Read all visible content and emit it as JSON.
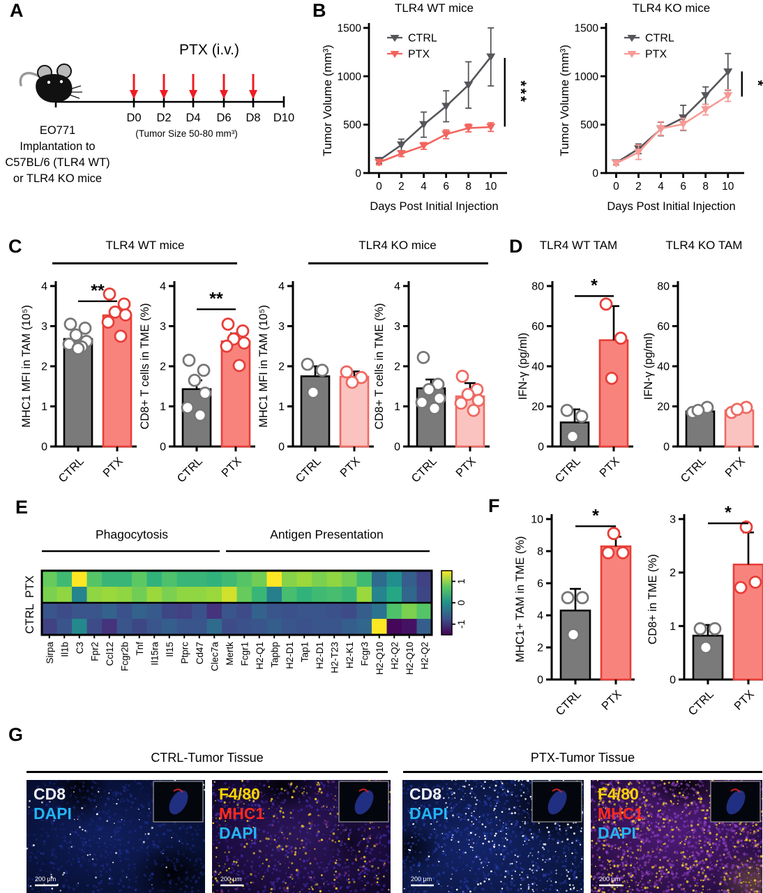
{
  "panel_labels": {
    "a": "A",
    "b": "B",
    "c": "C",
    "d": "D",
    "e": "E",
    "f": "F",
    "g": "G"
  },
  "panel_a": {
    "treatment_label": "PTX (i.v.)",
    "timeline_start": "EO771",
    "timeline_ticks": [
      "D0",
      "D2",
      "D4",
      "D6",
      "D8",
      "D10"
    ],
    "d0_note": "(Tumor Size 50-80 mm³)",
    "implant_lines": [
      "EO771",
      "Implantation to",
      "C57BL/6 (TLR4 WT)",
      "or TLR4 KO mice"
    ],
    "arrow_color": "#ed1c24",
    "n_arrows": 5
  },
  "panel_c": {
    "group_titles": [
      "TLR4 WT mice",
      "TLR4 KO mice"
    ]
  },
  "panel_g": {
    "groups": [
      {
        "title": "CTRL-Tumor Tissue",
        "images": [
          {
            "markers": [
              {
                "text": "CD8",
                "color": "#f5f5f5"
              },
              {
                "text": "DAPI",
                "color": "#23b5f5"
              }
            ],
            "scale_label": "200 μm"
          },
          {
            "markers": [
              {
                "text": "F4/80",
                "color": "#ffd400"
              },
              {
                "text": "MHC1",
                "color": "#ff2a1f"
              },
              {
                "text": "DAPI",
                "color": "#23b5f5"
              }
            ],
            "scale_label": "200 μm"
          }
        ]
      },
      {
        "title": "PTX-Tumor Tissue",
        "images": [
          {
            "markers": [
              {
                "text": "CD8",
                "color": "#f5f5f5"
              },
              {
                "text": "DAPI",
                "color": "#23b5f5"
              }
            ],
            "scale_label": "200 μm"
          },
          {
            "markers": [
              {
                "text": "F4/80",
                "color": "#ffd400"
              },
              {
                "text": "MHC1",
                "color": "#ff2a1f"
              },
              {
                "text": "DAPI",
                "color": "#23b5f5"
              }
            ],
            "scale_label": "200 μm"
          }
        ]
      }
    ]
  },
  "chart_data": [
    {
      "id": "b_wt",
      "type": "line",
      "title": "TLR4 WT mice",
      "xlabel": "Days Post Initial Injection",
      "ylabel": "Tumor Volume (mm³)",
      "x": [
        0,
        2,
        4,
        6,
        8,
        10
      ],
      "ylim": [
        0,
        1500
      ],
      "yticks": [
        0,
        500,
        1000,
        1500
      ],
      "series": [
        {
          "name": "CTRL",
          "color": "#55565a",
          "values": [
            130,
            290,
            500,
            690,
            910,
            1200
          ],
          "err": [
            30,
            60,
            130,
            160,
            240,
            300
          ]
        },
        {
          "name": "PTX",
          "color": "#f2655e",
          "values": [
            110,
            200,
            280,
            400,
            465,
            475
          ],
          "err": [
            25,
            30,
            35,
            45,
            40,
            45
          ]
        }
      ],
      "sig": {
        "label": "***",
        "from": 480,
        "to": 1190
      },
      "legend_position": "top-left",
      "grid": false
    },
    {
      "id": "b_ko",
      "type": "line",
      "title": "TLR4 KO mice",
      "xlabel": "Days Post Initial Injection",
      "ylabel": "Tumor Volume (mm³)",
      "x": [
        0,
        2,
        4,
        6,
        8,
        10
      ],
      "ylim": [
        0,
        1500
      ],
      "yticks": [
        0,
        500,
        1000,
        1500
      ],
      "series": [
        {
          "name": "CTRL",
          "color": "#55565a",
          "values": [
            105,
            250,
            455,
            570,
            800,
            1045
          ],
          "err": [
            20,
            50,
            70,
            130,
            90,
            190
          ]
        },
        {
          "name": "PTX",
          "color": "#f79a95",
          "values": [
            100,
            215,
            460,
            505,
            655,
            800
          ],
          "err": [
            20,
            75,
            70,
            60,
            55,
            60
          ]
        }
      ],
      "sig": {
        "label": "*",
        "from": 790,
        "to": 1050
      },
      "legend_position": "top-left",
      "grid": false
    },
    {
      "id": "c_wt_mhc1",
      "type": "bar",
      "ylabel": "MHC1 MFI in TAM (10⁵)",
      "ylim": [
        0,
        4
      ],
      "yticks": [
        0,
        1,
        2,
        3,
        4
      ],
      "categories": [
        "CTRL",
        "PTX"
      ],
      "bars": [
        {
          "name": "CTRL",
          "value": 2.68,
          "err": 0.14,
          "fill": "#7a7a7a",
          "edge": "#000000",
          "dot_edge": "#777777",
          "dots": [
            3.05,
            2.95,
            2.78,
            2.62,
            2.55,
            2.48,
            2.44
          ]
        },
        {
          "name": "PTX",
          "value": 3.27,
          "err": 0.16,
          "fill": "#f8837d",
          "edge": "#e83e38",
          "dot_edge": "#e83e38",
          "dots": [
            3.8,
            3.55,
            3.35,
            3.28,
            3.1,
            2.75
          ]
        }
      ],
      "sig": {
        "label": "**",
        "y": 3.62
      }
    },
    {
      "id": "c_wt_cd8",
      "type": "bar",
      "ylabel": "CD8+ T cells in TME (%)",
      "ylim": [
        0,
        4
      ],
      "yticks": [
        0,
        1,
        2,
        3,
        4
      ],
      "categories": [
        "CTRL",
        "PTX"
      ],
      "bars": [
        {
          "name": "CTRL",
          "value": 1.43,
          "err": 0.22,
          "fill": "#7a7a7a",
          "edge": "#000000",
          "dot_edge": "#777777",
          "dots": [
            2.15,
            1.9,
            1.65,
            1.33,
            0.97,
            0.78
          ]
        },
        {
          "name": "PTX",
          "value": 2.62,
          "err": 0.2,
          "fill": "#f8837d",
          "edge": "#e83e38",
          "dot_edge": "#e83e38",
          "dots": [
            3.05,
            2.88,
            2.68,
            2.58,
            2.5,
            2.02
          ]
        }
      ],
      "sig": {
        "label": "**",
        "y": 3.42
      }
    },
    {
      "id": "c_ko_mhc1",
      "type": "bar",
      "ylabel": "MHC1 MFI in TAM (10⁵)",
      "ylim": [
        0,
        4
      ],
      "yticks": [
        0,
        1,
        2,
        3,
        4
      ],
      "categories": [
        "CTRL",
        "PTX"
      ],
      "bars": [
        {
          "name": "CTRL",
          "value": 1.75,
          "err": 0.25,
          "fill": "#7a7a7a",
          "edge": "#000000",
          "dot_edge": "#777777",
          "dots": [
            2.05,
            1.9,
            1.35
          ]
        },
        {
          "name": "PTX",
          "value": 1.74,
          "err": 0.13,
          "fill": "#fbc3c0",
          "edge": "#ee6a62",
          "dot_edge": "#ee6a62",
          "dots": [
            1.86,
            1.72,
            1.6
          ]
        }
      ],
      "sig": null
    },
    {
      "id": "c_ko_cd8",
      "type": "bar",
      "ylabel": "CD8+ T cells in TME (%)",
      "ylim": [
        0,
        4
      ],
      "yticks": [
        0,
        1,
        2,
        3,
        4
      ],
      "categories": [
        "CTRL",
        "PTX"
      ],
      "bars": [
        {
          "name": "CTRL",
          "value": 1.45,
          "err": 0.22,
          "fill": "#7a7a7a",
          "edge": "#000000",
          "dot_edge": "#777777",
          "dots": [
            2.22,
            1.55,
            1.42,
            1.2,
            1.1,
            0.95
          ]
        },
        {
          "name": "PTX",
          "value": 1.25,
          "err": 0.33,
          "fill": "#fbc3c0",
          "edge": "#ee6a62",
          "dot_edge": "#ee6a62",
          "dots": [
            1.75,
            1.42,
            1.3,
            1.15,
            1.08,
            0.9
          ]
        }
      ],
      "sig": null
    },
    {
      "id": "d_wt_ifng",
      "type": "bar",
      "title": "TLR4 WT TAM",
      "ylabel": "IFN-γ (pg/ml)",
      "ylim": [
        0,
        80
      ],
      "yticks": [
        0,
        20,
        40,
        60,
        80
      ],
      "categories": [
        "CTRL",
        "PTX"
      ],
      "bars": [
        {
          "name": "CTRL",
          "value": 12,
          "err": 6.5,
          "fill": "#7a7a7a",
          "edge": "#000000",
          "dot_edge": "#777777",
          "dots": [
            18,
            15,
            5
          ]
        },
        {
          "name": "PTX",
          "value": 53,
          "err": 17,
          "fill": "#f8837d",
          "edge": "#e83e38",
          "dot_edge": "#e83e38",
          "dots": [
            71,
            54,
            34
          ]
        }
      ],
      "sig": {
        "label": "*",
        "y": 75
      }
    },
    {
      "id": "d_ko_ifng",
      "type": "bar",
      "title": "TLR4 KO TAM",
      "ylabel": "IFN-γ (pg/ml)",
      "ylim": [
        0,
        80
      ],
      "yticks": [
        0,
        20,
        40,
        60,
        80
      ],
      "categories": [
        "CTRL",
        "PTX"
      ],
      "bars": [
        {
          "name": "CTRL",
          "value": 17.5,
          "err": 1.5,
          "fill": "#7a7a7a",
          "edge": "#000000",
          "dot_edge": "#777777",
          "dots": [
            17,
            19.5,
            18
          ]
        },
        {
          "name": "PTX",
          "value": 18,
          "err": 1.5,
          "fill": "#fbc3c0",
          "edge": "#ee6a62",
          "dot_edge": "#ee6a62",
          "dots": [
            17,
            19.5,
            18.5
          ]
        }
      ],
      "sig": null
    },
    {
      "id": "tam_gene_heatmap",
      "type": "heatmap",
      "rows": [
        "PTX",
        "PTX",
        "CTRL",
        "CTRL"
      ],
      "row_axis_labels": [
        "PTX",
        "CTRL"
      ],
      "genes": [
        "Sirpa",
        "Il1b",
        "C3",
        "Fpr2",
        "Ccl12",
        "Fcgr2b",
        "Tnf",
        "Il15ra",
        "Il15",
        "Ptprc",
        "Cd47",
        "Clec7a",
        "Mertk",
        "Fcgr1",
        "H2-Q1",
        "Tapbp",
        "H2-D1",
        "Tap1",
        "H2-D1",
        "H2-T23",
        "H2-K1",
        "Fcgr3",
        "H2-Q10",
        "H2-Q2",
        "H2-Q10",
        "H2-Q2"
      ],
      "groups": [
        {
          "label": "Phagocytosis",
          "from": 0,
          "to": 11
        },
        {
          "label": "Antigen Presentation",
          "from": 12,
          "to": 25
        }
      ],
      "values": [
        [
          0.8,
          0.55,
          1.5,
          0.7,
          0.5,
          0.5,
          0.75,
          0.45,
          0.65,
          0.5,
          0.5,
          0.45,
          0.55,
          0.7,
          0.85,
          1.5,
          0.95,
          1.05,
          0.9,
          1.0,
          0.85,
          0.55,
          -0.45,
          0.0,
          -0.6,
          -0.9
        ],
        [
          0.9,
          1.0,
          -0.15,
          1.0,
          1.05,
          1.0,
          0.85,
          1.05,
          0.9,
          1.0,
          1.0,
          1.05,
          1.3,
          0.8,
          0.5,
          -0.2,
          0.6,
          0.45,
          0.55,
          0.6,
          0.5,
          1.05,
          -0.15,
          0.3,
          -0.5,
          -0.85
        ],
        [
          -0.7,
          -0.8,
          -0.7,
          -0.7,
          -0.55,
          -0.75,
          -0.55,
          -0.65,
          -0.85,
          -0.9,
          -0.75,
          -1.05,
          -0.7,
          -0.8,
          -0.55,
          -0.7,
          -0.75,
          -0.7,
          -0.7,
          -0.75,
          -0.8,
          -0.6,
          -0.35,
          0.65,
          0.9,
          0.7
        ],
        [
          -0.9,
          -0.7,
          -0.1,
          -0.8,
          -1.05,
          -0.7,
          -0.85,
          -0.7,
          -0.6,
          -0.7,
          -0.7,
          -0.45,
          -0.8,
          -0.75,
          -0.7,
          -0.6,
          -0.7,
          -0.75,
          -0.7,
          -0.7,
          -0.6,
          -0.5,
          1.5,
          -1.45,
          -1.35,
          -0.6
        ]
      ],
      "vmin": -1.5,
      "vmax": 1.5,
      "colorbar_ticks": [
        1,
        0,
        -1
      ],
      "colormap": "viridis"
    },
    {
      "id": "f_mhc1_tam",
      "type": "bar",
      "ylabel": "MHC1+ TAM in TME (%)",
      "ylim": [
        0,
        10
      ],
      "yticks": [
        0,
        2,
        4,
        6,
        8,
        10
      ],
      "categories": [
        "CTRL",
        "PTX"
      ],
      "bars": [
        {
          "name": "CTRL",
          "value": 4.3,
          "err": 1.35,
          "fill": "#7a7a7a",
          "edge": "#000000",
          "dot_edge": "#777777",
          "dots": [
            5.1,
            5.1,
            2.8
          ]
        },
        {
          "name": "PTX",
          "value": 8.3,
          "err": 0.6,
          "fill": "#f8837d",
          "edge": "#e83e38",
          "dot_edge": "#e83e38",
          "dots": [
            7.9,
            7.9,
            9.1
          ]
        }
      ],
      "sig": {
        "label": "*",
        "y": 9.55
      }
    },
    {
      "id": "f_cd8_tme",
      "type": "bar",
      "ylabel": "CD8+ in TME (%)",
      "ylim": [
        0,
        3
      ],
      "yticks": [
        0,
        1,
        2,
        3
      ],
      "categories": [
        "CTRL",
        "PTX"
      ],
      "bars": [
        {
          "name": "CTRL",
          "value": 0.82,
          "err": 0.2,
          "fill": "#7a7a7a",
          "edge": "#000000",
          "dot_edge": "#777777",
          "dots": [
            0.95,
            0.95,
            0.6
          ]
        },
        {
          "name": "PTX",
          "value": 2.15,
          "err": 0.6,
          "fill": "#f8837d",
          "edge": "#e83e38",
          "dot_edge": "#e83e38",
          "dots": [
            1.72,
            1.82,
            2.85
          ]
        }
      ],
      "sig": {
        "label": "*",
        "y": 2.92
      }
    }
  ]
}
